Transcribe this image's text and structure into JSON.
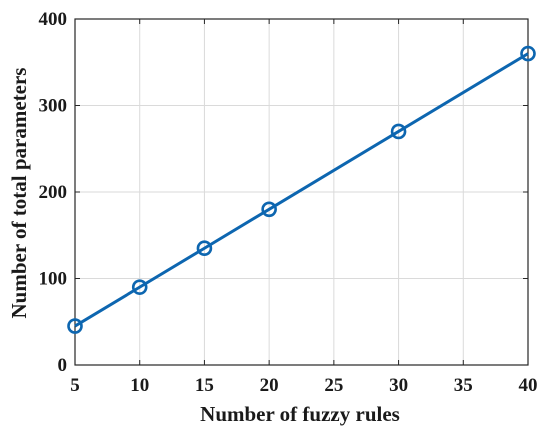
{
  "chart_data": {
    "type": "line",
    "title": "",
    "xlabel": "Number of fuzzy rules",
    "ylabel": "Number of total parameters",
    "xlim": [
      5,
      40
    ],
    "ylim": [
      0,
      400
    ],
    "xticks": [
      5,
      10,
      15,
      20,
      25,
      30,
      35,
      40
    ],
    "yticks": [
      0,
      100,
      200,
      300,
      400
    ],
    "grid": true,
    "legend": "none",
    "marker": "circle",
    "series": [
      {
        "color": "#0d66b0",
        "x": [
          5,
          10,
          15,
          20,
          30,
          40
        ],
        "y": [
          45,
          90,
          135,
          180,
          270,
          360
        ]
      }
    ]
  }
}
